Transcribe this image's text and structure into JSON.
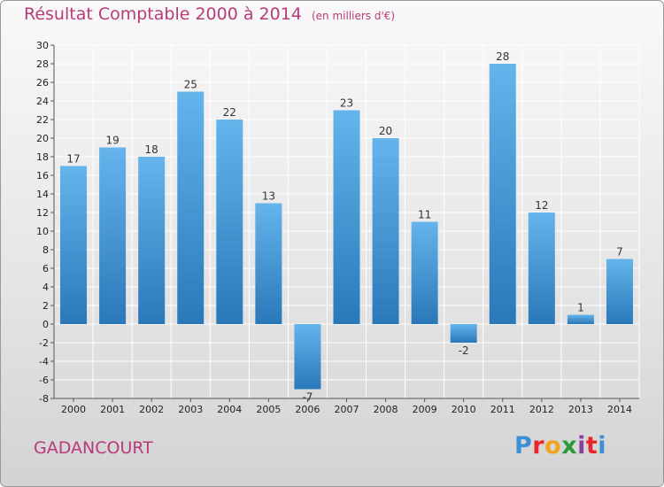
{
  "header": {
    "title": "Résultat Comptable 2000 à 2014",
    "unit": "(en milliers d'€)"
  },
  "footer": {
    "commune": "GADANCOURT",
    "brand": [
      "P",
      "r",
      "o",
      "x",
      "i",
      "t",
      "i"
    ],
    "brand_colors": [
      "#3d8fd4",
      "#e8262b",
      "#f2a21b",
      "#2a9a3a",
      "#8a3fa0",
      "#e8262b",
      "#3d8fd4"
    ]
  },
  "colors": {
    "bar_top": "#65b4ec",
    "bar_bottom": "#2a78b8",
    "axis": "#555555",
    "tick_text": "#222222",
    "grid": "#ffffff"
  },
  "chart_data": {
    "type": "bar",
    "title": "Résultat Comptable 2000 à 2014",
    "subtitle": "(en milliers d'€)",
    "categories": [
      "2000",
      "2001",
      "2002",
      "2003",
      "2004",
      "2005",
      "2006",
      "2007",
      "2008",
      "2009",
      "2010",
      "2011",
      "2012",
      "2013",
      "2014"
    ],
    "values": [
      17,
      19,
      18,
      25,
      22,
      13,
      -7,
      23,
      20,
      11,
      -2,
      28,
      12,
      1,
      7
    ],
    "ylim": [
      -8,
      30
    ],
    "yticks": [
      -8,
      -6,
      -4,
      -2,
      0,
      2,
      4,
      6,
      8,
      10,
      12,
      14,
      16,
      18,
      20,
      22,
      24,
      26,
      28,
      30
    ],
    "grid": true,
    "legend": "none"
  }
}
